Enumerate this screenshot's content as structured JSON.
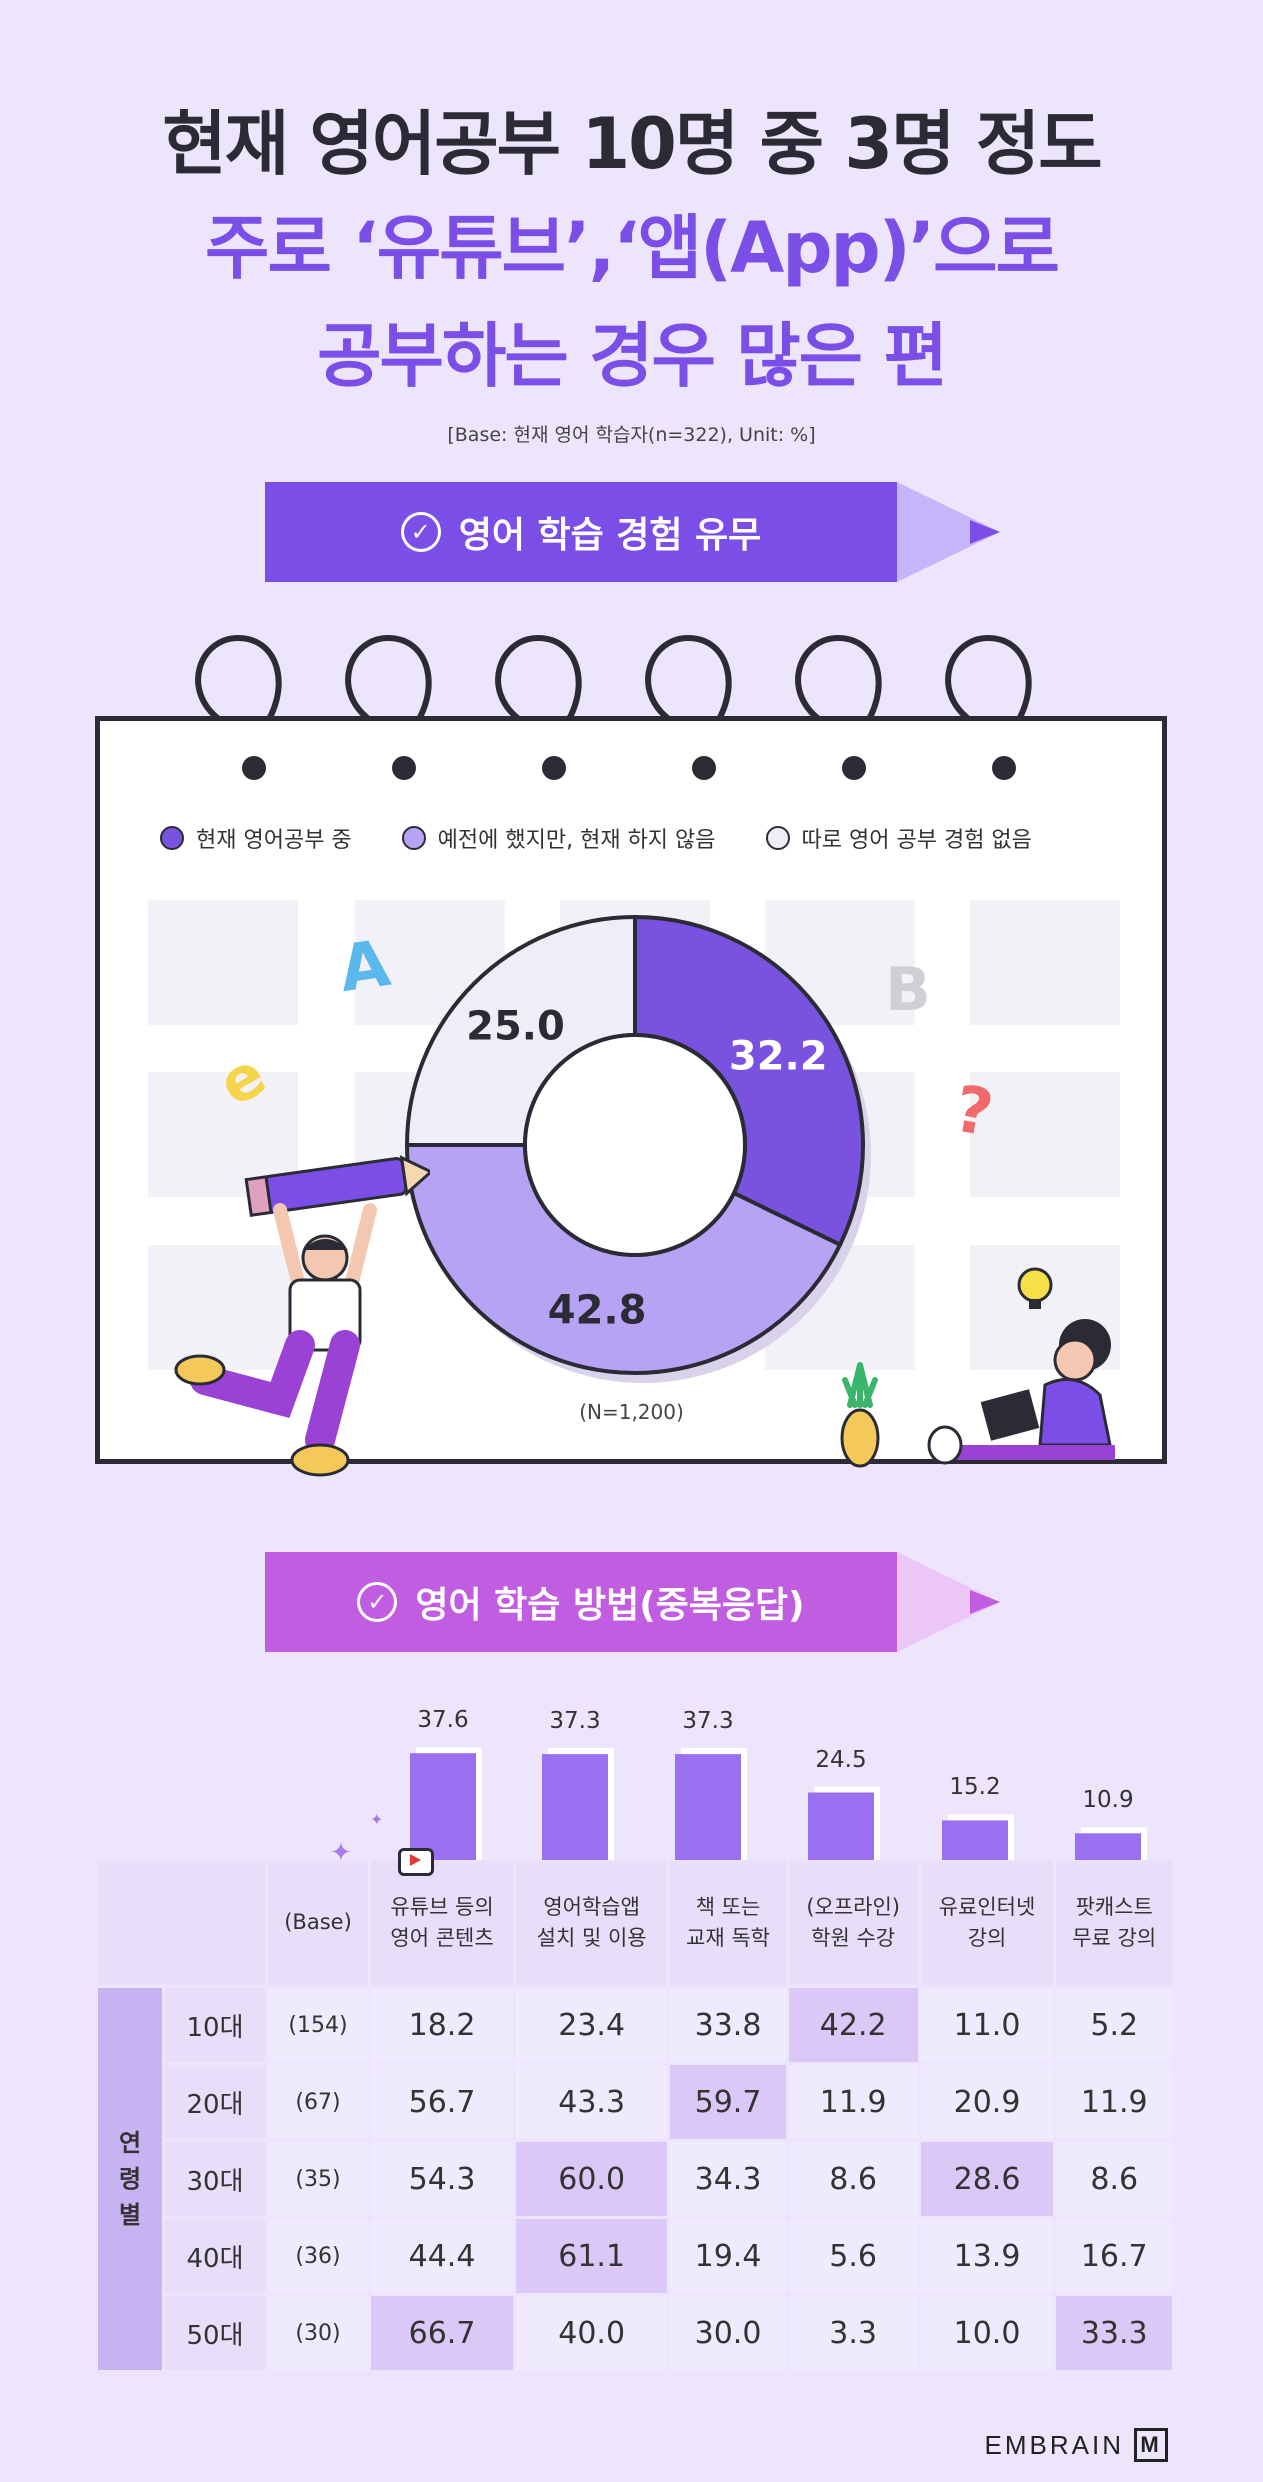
{
  "title": {
    "line1": "현재 영어공부 10명 중 3명 정도",
    "line2": "주로 ‘유튜브’,‘앱(App)’으로",
    "line3": "공부하는 경우 많은 편"
  },
  "base_note": "[Base: 현재 영어 학습자(n=322), Unit: %]",
  "section1": {
    "label": "영어 학습 경험 유무"
  },
  "section2": {
    "label": "영어 학습 방법(중복응답)"
  },
  "colors": {
    "dark": "#7a52e0",
    "mid": "#b6a3f4",
    "light": "#efedf8",
    "accent": "#7b4ee8",
    "header2": "#c05de0"
  },
  "chart_data": [
    {
      "type": "pie",
      "categories": [
        "현재 영어공부 중",
        "예전에 했지만, 현재 하지 않음",
        "따로 영어 공부 경험 없음"
      ],
      "values": [
        32.2,
        42.8,
        25.0
      ],
      "labels": [
        "32.2",
        "42.8",
        "25.0"
      ],
      "note": "(N=1,200)",
      "legend": "top"
    },
    {
      "type": "bar",
      "categories": [
        "유튜브 등의 영어 콘텐츠",
        "영어학습앱 설치 및 이용",
        "책 또는 교재 독학",
        "(오프라인) 학원 수강",
        "유료인터넷 강의",
        "팟캐스트 무료 강의"
      ],
      "values": [
        37.6,
        37.3,
        37.3,
        24.5,
        15.2,
        10.9
      ],
      "labels": [
        "37.6",
        "37.3",
        "37.3",
        "24.5",
        "15.2",
        "10.9"
      ],
      "ylim": [
        0,
        40
      ]
    },
    {
      "type": "table",
      "header": {
        "base": "(Base)",
        "columns": [
          [
            "유튜브 등의",
            "영어 콘텐츠"
          ],
          [
            "영어학습앱",
            "설치 및 이용"
          ],
          [
            "책 또는",
            "교재 독학"
          ],
          [
            "(오프라인)",
            "학원 수강"
          ],
          [
            "유료인터넷",
            "강의"
          ],
          [
            "팟캐스트",
            "무료 강의"
          ]
        ]
      },
      "group_label": [
        "연",
        "령",
        "별"
      ],
      "rows": [
        {
          "age": "10대",
          "base": "(154)",
          "values": [
            "18.2",
            "23.4",
            "33.8",
            "42.2",
            "11.0",
            "5.2"
          ],
          "highlight": 3
        },
        {
          "age": "20대",
          "base": "(67)",
          "values": [
            "56.7",
            "43.3",
            "59.7",
            "11.9",
            "20.9",
            "11.9"
          ],
          "highlight": 2
        },
        {
          "age": "30대",
          "base": "(35)",
          "values": [
            "54.3",
            "60.0",
            "34.3",
            "8.6",
            "28.6",
            "8.6"
          ],
          "highlight": [
            1,
            4
          ]
        },
        {
          "age": "40대",
          "base": "(36)",
          "values": [
            "44.4",
            "61.1",
            "19.4",
            "5.6",
            "13.9",
            "16.7"
          ],
          "highlight": 1
        },
        {
          "age": "50대",
          "base": "(30)",
          "values": [
            "66.7",
            "40.0",
            "30.0",
            "3.3",
            "10.0",
            "33.3"
          ],
          "highlight": [
            0,
            5
          ]
        }
      ]
    }
  ],
  "deco": {
    "letter_a": "A",
    "letter_b": "B",
    "question": "?",
    "swirl": "e"
  },
  "brand": {
    "name": "EMBRAIN",
    "mark": "M"
  }
}
